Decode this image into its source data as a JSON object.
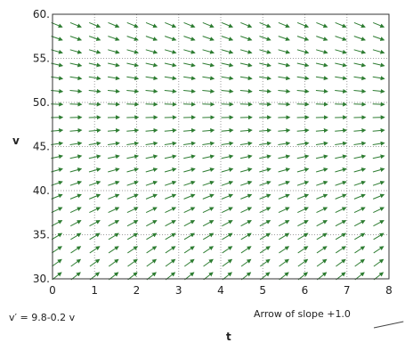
{
  "chart_data": {
    "type": "direction_field",
    "equation": "v′ = 9.8-0.2 v",
    "xlabel": "t",
    "ylabel": "v",
    "xlim": [
      0,
      8
    ],
    "ylim": [
      30,
      60
    ],
    "x_ticks": [
      0,
      1,
      2,
      3,
      4,
      5,
      6,
      7,
      8
    ],
    "y_ticks": [
      30,
      35,
      40,
      45,
      50,
      55,
      60
    ],
    "y_tick_labels": [
      "30.",
      "35.",
      "40.",
      "45.",
      "50.",
      "55.",
      "60."
    ],
    "slope_a": 9.8,
    "slope_b": -0.2,
    "grid": true,
    "grid_style": "dotted",
    "t_start": 0.1,
    "t_step": 0.45,
    "v_start": 30.3,
    "v_step": 1.5,
    "arrow_color": "#2e7d32",
    "grid_color": "#9e9e9e",
    "reference_note": "Arrow of slope +1.0",
    "reference_slope": 1.0
  }
}
